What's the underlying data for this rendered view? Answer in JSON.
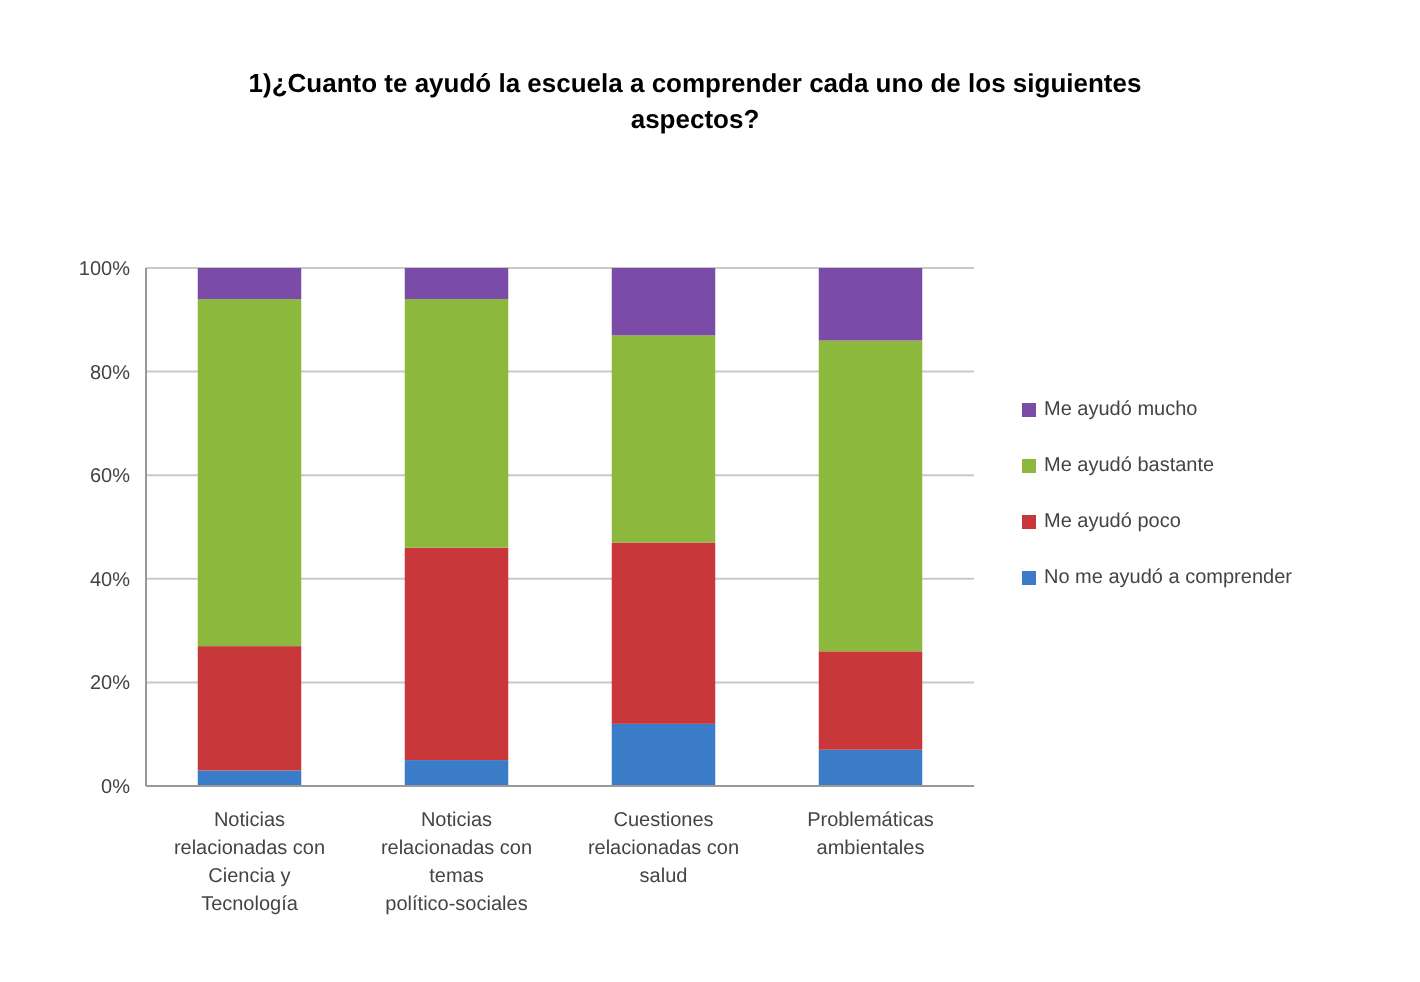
{
  "chart_data": {
    "type": "bar",
    "stacked": true,
    "title": "1)¿Cuanto te ayudó la escuela a comprender cada uno de los siguientes aspectos?",
    "categories": [
      "Noticias relacionadas con Ciencia y Tecnología",
      "Noticias relacionadas con temas político-sociales",
      "Cuestiones relacionadas con salud",
      "Problemáticas ambientales"
    ],
    "series": [
      {
        "name": "No me ayudó a comprender",
        "color": "#3a7cc8",
        "values": [
          3,
          5,
          12,
          7
        ]
      },
      {
        "name": "Me ayudó poco",
        "color": "#c8383a",
        "values": [
          24,
          41,
          35,
          19
        ]
      },
      {
        "name": "Me ayudó bastante",
        "color": "#8cb83e",
        "values": [
          67,
          48,
          40,
          60
        ]
      },
      {
        "name": "Me ayudó mucho",
        "color": "#7a4ca8",
        "values": [
          6,
          6,
          13,
          14
        ]
      }
    ],
    "ylim": [
      0,
      100
    ],
    "yticks": [
      {
        "value": 0,
        "label": "0%"
      },
      {
        "value": 20,
        "label": "20%"
      },
      {
        "value": 40,
        "label": "40%"
      },
      {
        "value": 60,
        "label": "60%"
      },
      {
        "value": 80,
        "label": "80%"
      },
      {
        "value": 100,
        "label": "100%"
      }
    ],
    "grid": "y",
    "legend": "right"
  }
}
